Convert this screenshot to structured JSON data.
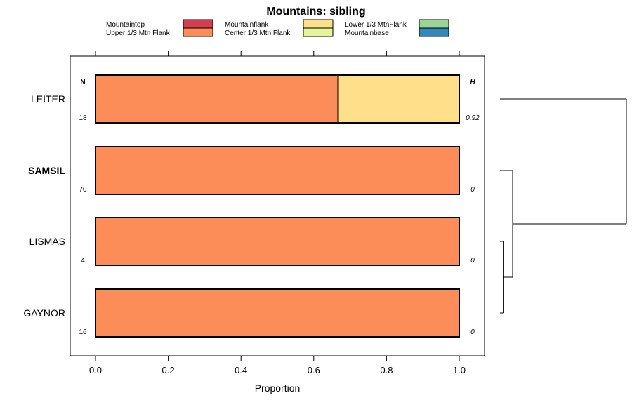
{
  "chart_data": {
    "type": "bar",
    "orientation": "horizontal",
    "stacked": true,
    "title": "Mountains: sibling",
    "xlabel": "Proportion",
    "ylabel": "",
    "xlim": [
      0,
      1
    ],
    "x_ticks": [
      "0.0",
      "0.2",
      "0.4",
      "0.6",
      "0.8",
      "1.0"
    ],
    "x_tick_values": [
      0,
      0.2,
      0.4,
      0.6,
      0.8,
      1.0
    ],
    "n_header": "N",
    "h_header": "H",
    "legend": {
      "placement": "top",
      "entries": [
        {
          "name": "Mountaintop",
          "color": "#d53e4f"
        },
        {
          "name": "Upper 1/3 Mtn Flank",
          "color": "#fc8d59"
        },
        {
          "name": "Mountainflank",
          "color": "#fee08b"
        },
        {
          "name": "Center 1/3 Mtn Flank",
          "color": "#e6f598"
        },
        {
          "name": "Lower 1/3 MtnFlank",
          "color": "#99d594"
        },
        {
          "name": "Mountainbase",
          "color": "#3288bd"
        }
      ]
    },
    "categories": [
      "LEITER",
      "SAMSIL",
      "LISMAS",
      "GAYNOR"
    ],
    "highlighted_category": "SAMSIL",
    "n_values": [
      "18",
      "70",
      "4",
      "16"
    ],
    "h_values": [
      "0.92",
      "0",
      "0",
      "0"
    ],
    "series": [
      {
        "name": "Mountaintop",
        "values": [
          0,
          0,
          0,
          0
        ]
      },
      {
        "name": "Upper 1/3 Mtn Flank",
        "values": [
          0.667,
          1.0,
          1.0,
          1.0
        ]
      },
      {
        "name": "Mountainflank",
        "values": [
          0.333,
          0,
          0,
          0
        ]
      },
      {
        "name": "Center 1/3 Mtn Flank",
        "values": [
          0,
          0,
          0,
          0
        ]
      },
      {
        "name": "Lower 1/3 MtnFlank",
        "values": [
          0,
          0,
          0,
          0
        ]
      },
      {
        "name": "Mountainbase",
        "values": [
          0,
          0,
          0,
          0
        ]
      }
    ],
    "dendrogram": {
      "merges": [
        {
          "left": "LISMAS",
          "right": "GAYNOR",
          "height": 0.03
        },
        {
          "left": "SAMSIL",
          "right": "LISMAS+GAYNOR",
          "height": 0.1
        },
        {
          "left": "LEITER",
          "right": "SAMSIL+LISMAS+GAYNOR",
          "height": 1.0
        }
      ]
    }
  }
}
